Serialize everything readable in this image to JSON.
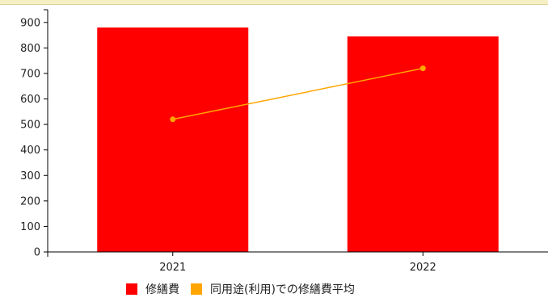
{
  "chart_data": {
    "type": "bar",
    "categories": [
      "2021",
      "2022"
    ],
    "series": [
      {
        "name": "修繕費",
        "kind": "bar",
        "color": "#ff0000",
        "values": [
          880,
          845
        ]
      },
      {
        "name": "同用途(利用)での修繕費平均",
        "kind": "line",
        "color": "#ffa500",
        "values": [
          520,
          720
        ]
      }
    ],
    "ylim": [
      0,
      950
    ],
    "yticks": [
      0,
      100,
      200,
      300,
      400,
      500,
      600,
      700,
      800,
      900
    ],
    "title": "",
    "xlabel": "",
    "ylabel": "",
    "grid": false,
    "legend_position": "bottom-center"
  }
}
